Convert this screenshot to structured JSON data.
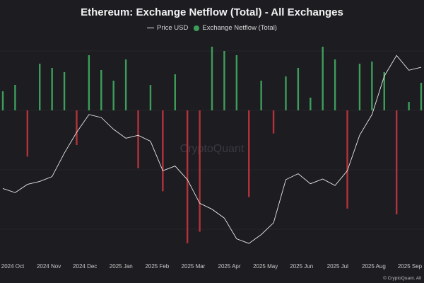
{
  "chart": {
    "title": "Ethereum: Exchange Netflow (Total) - All Exchanges",
    "credit": "© CryptoQuant. All",
    "watermark": "CryptoQuant"
  },
  "chart_data": {
    "type": "bar",
    "title": "Ethereum: Exchange Netflow (Total) - All Exchanges",
    "xlabel": "",
    "ylabel": "",
    "grid": true,
    "legend_position": "top",
    "x_ticks": [
      "2024 Oct",
      "2024 Nov",
      "2024 Dec",
      "2025 Jan",
      "2025 Feb",
      "2025 Mar",
      "2025 Apr",
      "2025 May",
      "2025 Jun",
      "2025 Jul",
      "2025 Aug",
      "2025 Sep"
    ],
    "colors": {
      "inflow": "#3c9e5a",
      "outflow": "#b4323c",
      "price": "#e8e8e8",
      "background": "#1d1c21",
      "grid": "#2d2c33"
    },
    "series": [
      {
        "name": "Price USD",
        "kind": "line",
        "values": [
          2400,
          2330,
          2470,
          2520,
          2600,
          3000,
          3350,
          3650,
          3600,
          3400,
          3250,
          3300,
          3200,
          2700,
          2780,
          2550,
          2150,
          2050,
          1900,
          1550,
          1470,
          1620,
          1820,
          2550,
          2650,
          2480,
          2560,
          2450,
          2700,
          3300,
          3650,
          4300,
          4650,
          4400,
          4450
        ]
      },
      {
        "name": "Exchange Netflow (Total)",
        "kind": "bar",
        "values": [
          45000,
          60000,
          -80000,
          110000,
          100000,
          90000,
          -60000,
          130000,
          95000,
          70000,
          120000,
          -100000,
          60000,
          -140000,
          85000,
          -230000,
          -210000,
          150000,
          140000,
          130000,
          -150000,
          70000,
          -40000,
          80000,
          100000,
          30000,
          150000,
          120000,
          -170000,
          110000,
          115000,
          90000,
          -180000,
          20000,
          65000
        ]
      }
    ]
  }
}
